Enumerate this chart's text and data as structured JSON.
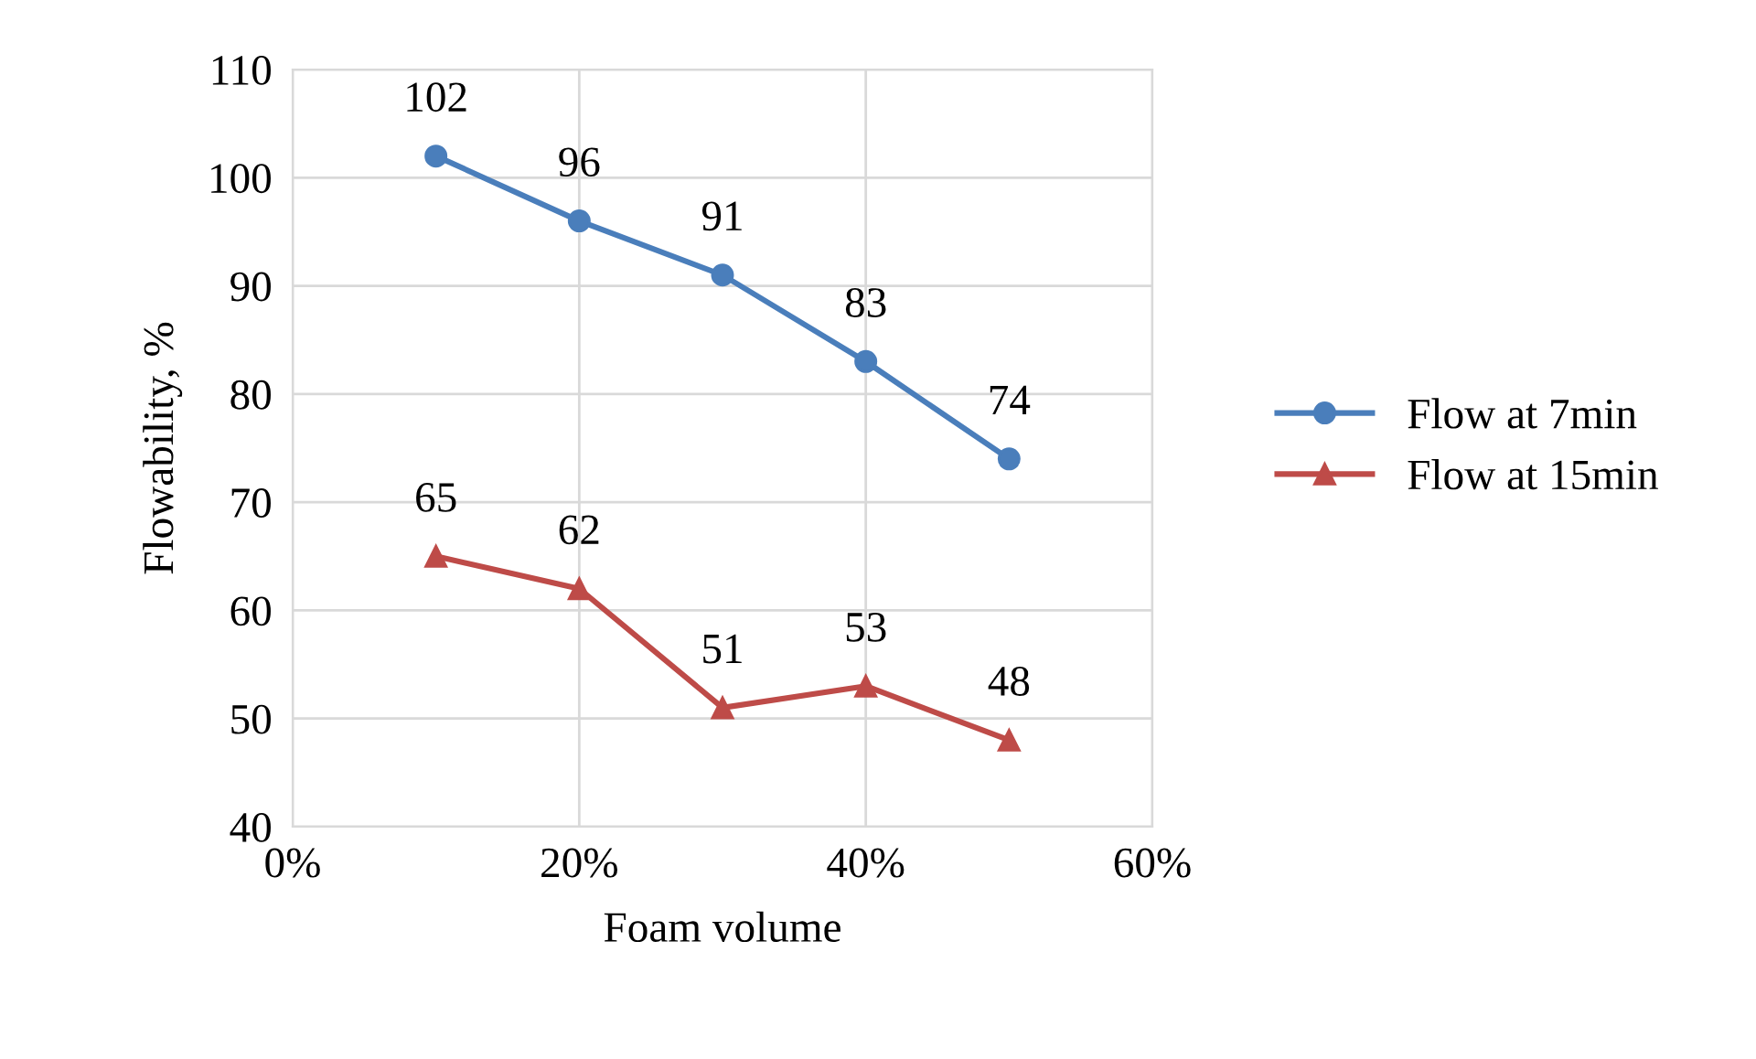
{
  "chart_data": {
    "type": "line",
    "xlabel": "Foam volume",
    "ylabel": "Flowability, %",
    "x": [
      10,
      20,
      30,
      40,
      50
    ],
    "series": [
      {
        "name": "Flow at 7min",
        "color": "#4a7ebb",
        "marker": "circle",
        "values": [
          102,
          96,
          91,
          83,
          74
        ]
      },
      {
        "name": "Flow at 15min",
        "color": "#be4b48",
        "marker": "triangle",
        "values": [
          65,
          62,
          51,
          53,
          48
        ]
      }
    ],
    "xlim": [
      0,
      60
    ],
    "xticks": [
      {
        "value": 0,
        "label": "0%"
      },
      {
        "value": 20,
        "label": "20%"
      },
      {
        "value": 40,
        "label": "40%"
      },
      {
        "value": 60,
        "label": "60%"
      }
    ],
    "ylim": [
      40,
      110
    ],
    "yticks": [
      40,
      50,
      60,
      70,
      80,
      90,
      100,
      110
    ],
    "grid": true,
    "legend": "right",
    "data_labels": true,
    "line_style": "solid"
  }
}
